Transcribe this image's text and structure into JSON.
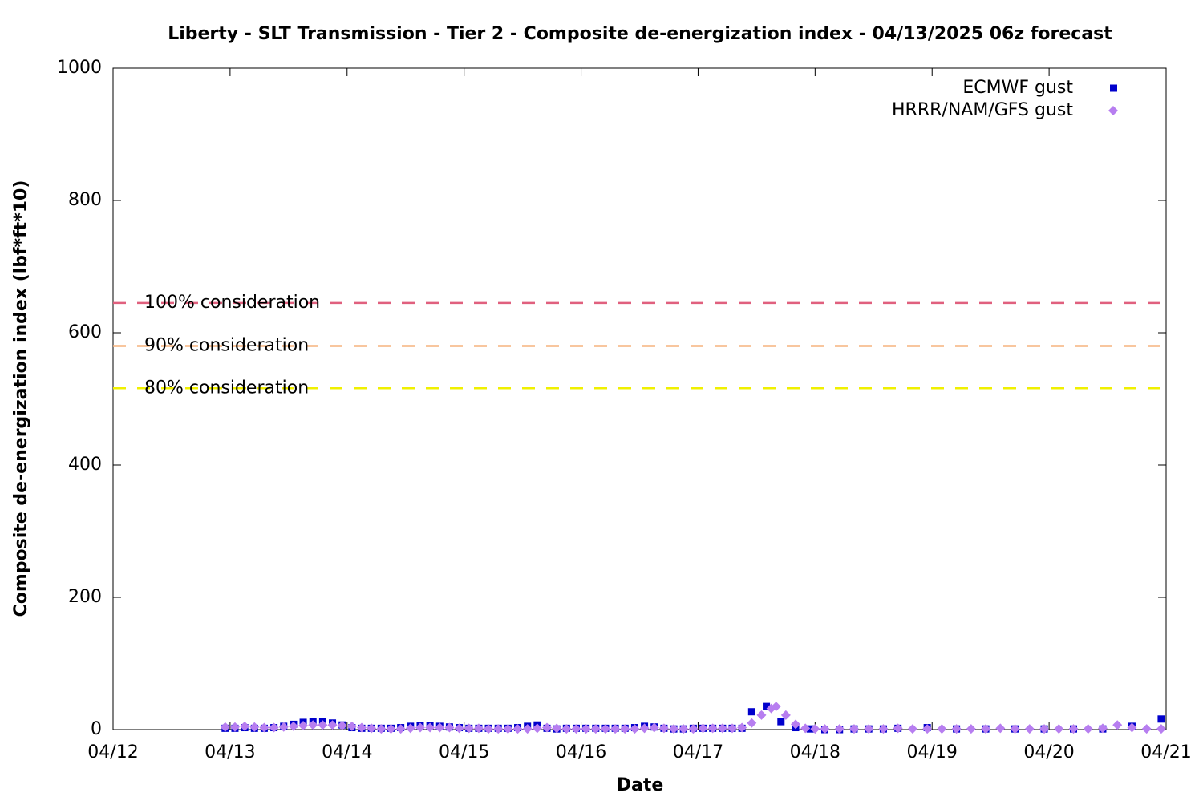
{
  "chart_data": {
    "type": "scatter",
    "title": "Liberty - SLT Transmission - Tier 2 - Composite de-energization index - 04/13/2025 06z forecast",
    "xlabel": "Date",
    "ylabel": "Composite de-energization index (lbf*ft*10)",
    "xlim": [
      0,
      216
    ],
    "xticks": [
      {
        "value": 0,
        "label": "04/12"
      },
      {
        "value": 24,
        "label": "04/13"
      },
      {
        "value": 48,
        "label": "04/14"
      },
      {
        "value": 72,
        "label": "04/15"
      },
      {
        "value": 96,
        "label": "04/16"
      },
      {
        "value": 120,
        "label": "04/17"
      },
      {
        "value": 144,
        "label": "04/18"
      },
      {
        "value": 168,
        "label": "04/19"
      },
      {
        "value": 192,
        "label": "04/20"
      },
      {
        "value": 216,
        "label": "04/21"
      }
    ],
    "ylim": [
      0,
      1000
    ],
    "yticks": [
      0,
      200,
      400,
      600,
      800,
      1000
    ],
    "legend": "top-right",
    "thresholds": [
      {
        "label": "100% consideration",
        "value": 645,
        "color": "#e0607e"
      },
      {
        "label": "90% consideration",
        "value": 580,
        "color": "#f5b47e"
      },
      {
        "label": "80% consideration",
        "value": 516,
        "color": "#f0f000"
      }
    ],
    "series": [
      {
        "name": "ECMWF gust",
        "color": "#0000cc",
        "marker": "square",
        "x": [
          23,
          25,
          27,
          29,
          31,
          33,
          35,
          37,
          39,
          41,
          43,
          45,
          47,
          49,
          51,
          53,
          55,
          57,
          59,
          61,
          63,
          65,
          67,
          69,
          71,
          73,
          75,
          77,
          79,
          81,
          83,
          85,
          87,
          89,
          91,
          93,
          95,
          97,
          99,
          101,
          103,
          105,
          107,
          109,
          111,
          113,
          115,
          117,
          119,
          121,
          123,
          125,
          127,
          129,
          131,
          134,
          137,
          140,
          143,
          146,
          149,
          152,
          155,
          158,
          161,
          167,
          173,
          179,
          185,
          191,
          197,
          203,
          209,
          215
        ],
        "values": [
          2,
          2,
          3,
          2,
          2,
          3,
          5,
          8,
          11,
          12,
          12,
          10,
          7,
          3,
          2,
          2,
          2,
          2,
          3,
          5,
          6,
          6,
          5,
          4,
          3,
          2,
          2,
          2,
          2,
          2,
          3,
          5,
          7,
          2,
          1,
          2,
          2,
          2,
          2,
          2,
          2,
          2,
          3,
          5,
          4,
          2,
          1,
          1,
          2,
          2,
          2,
          2,
          2,
          2,
          27,
          35,
          12,
          3,
          1,
          0,
          0,
          1,
          1,
          1,
          2,
          3,
          1,
          1,
          1,
          1,
          1,
          1,
          5,
          16
        ]
      },
      {
        "name": "HRRR/NAM/GFS gust",
        "color": "#b77ef0",
        "marker": "diamond",
        "x": [
          23,
          25,
          27,
          29,
          31,
          33,
          35,
          37,
          39,
          41,
          43,
          45,
          47,
          49,
          51,
          53,
          55,
          57,
          59,
          61,
          63,
          65,
          67,
          69,
          71,
          73,
          75,
          77,
          79,
          81,
          83,
          85,
          87,
          89,
          91,
          93,
          95,
          97,
          99,
          101,
          103,
          105,
          107,
          109,
          111,
          113,
          115,
          117,
          119,
          121,
          123,
          125,
          127,
          129,
          131,
          133,
          135,
          136,
          138,
          140,
          142,
          144,
          146,
          149,
          152,
          155,
          158,
          161,
          164,
          167,
          170,
          173,
          176,
          179,
          182,
          185,
          188,
          191,
          194,
          197,
          200,
          203,
          206,
          209,
          212,
          215
        ],
        "values": [
          4,
          4,
          5,
          4,
          3,
          3,
          4,
          5,
          6,
          7,
          7,
          7,
          6,
          5,
          3,
          2,
          1,
          1,
          1,
          2,
          3,
          3,
          3,
          3,
          2,
          2,
          2,
          1,
          1,
          1,
          1,
          1,
          2,
          3,
          2,
          1,
          1,
          1,
          1,
          1,
          1,
          1,
          1,
          2,
          3,
          2,
          1,
          1,
          1,
          2,
          2,
          2,
          2,
          3,
          10,
          22,
          32,
          35,
          22,
          8,
          2,
          1,
          1,
          1,
          1,
          1,
          1,
          2,
          1,
          1,
          1,
          1,
          1,
          1,
          2,
          1,
          1,
          1,
          1,
          1,
          1,
          2,
          7,
          3,
          1,
          1
        ]
      }
    ]
  }
}
